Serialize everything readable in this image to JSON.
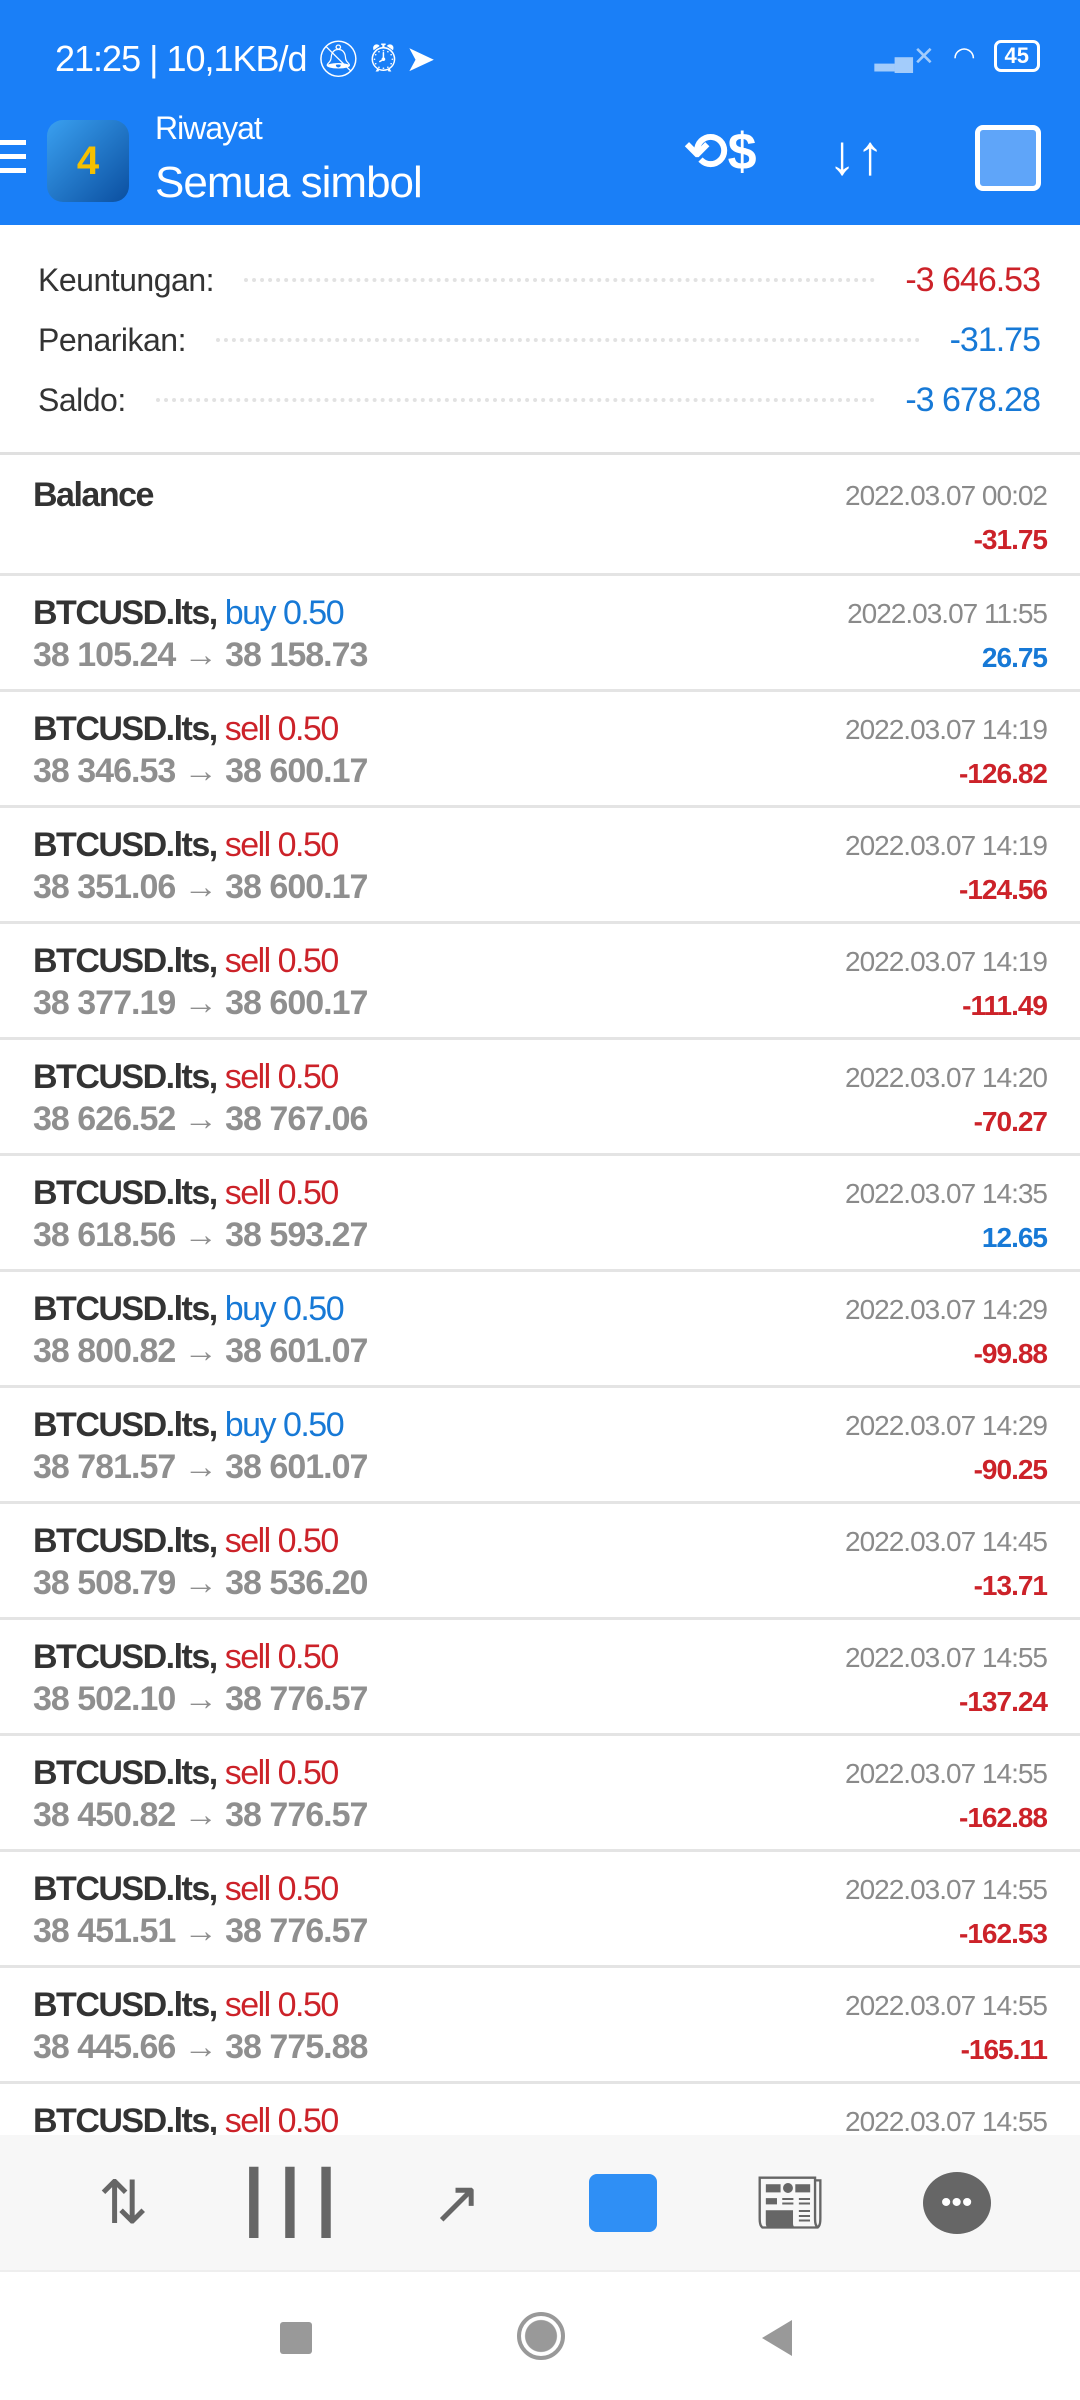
{
  "status_bar": {
    "time": "21:25",
    "speed": "10,1KB/d",
    "battery": "45"
  },
  "header": {
    "subtitle": "Riwayat",
    "title": "Semua simbol",
    "icons": [
      "currency-exchange-icon",
      "sort-icon",
      "calendar-icon"
    ]
  },
  "summary": [
    {
      "label": "Keuntungan:",
      "value": "-3 646.53",
      "color": "#cc2229"
    },
    {
      "label": "Penarikan:",
      "value": "-31.75",
      "color": "#1779d6"
    },
    {
      "label": "Saldo:",
      "value": "-3 678.28",
      "color": "#1779d6"
    }
  ],
  "balance": {
    "label": "Balance",
    "time": "2022.03.07 00:02",
    "amount": "-31.75"
  },
  "trades": [
    {
      "symbol": "BTCUSD.lts,",
      "side": "buy 0.50",
      "prices": "38 105.24 → 38 158.73",
      "time": "2022.03.07 11:55",
      "profit": "26.75"
    },
    {
      "symbol": "BTCUSD.lts,",
      "side": "sell 0.50",
      "prices": "38 346.53 → 38 600.17",
      "time": "2022.03.07 14:19",
      "profit": "-126.82"
    },
    {
      "symbol": "BTCUSD.lts,",
      "side": "sell 0.50",
      "prices": "38 351.06 → 38 600.17",
      "time": "2022.03.07 14:19",
      "profit": "-124.56"
    },
    {
      "symbol": "BTCUSD.lts,",
      "side": "sell 0.50",
      "prices": "38 377.19 → 38 600.17",
      "time": "2022.03.07 14:19",
      "profit": "-111.49"
    },
    {
      "symbol": "BTCUSD.lts,",
      "side": "sell 0.50",
      "prices": "38 626.52 → 38 767.06",
      "time": "2022.03.07 14:20",
      "profit": "-70.27"
    },
    {
      "symbol": "BTCUSD.lts,",
      "side": "sell 0.50",
      "prices": "38 618.56 → 38 593.27",
      "time": "2022.03.07 14:35",
      "profit": "12.65"
    },
    {
      "symbol": "BTCUSD.lts,",
      "side": "buy 0.50",
      "prices": "38 800.82 → 38 601.07",
      "time": "2022.03.07 14:29",
      "profit": "-99.88"
    },
    {
      "symbol": "BTCUSD.lts,",
      "side": "buy 0.50",
      "prices": "38 781.57 → 38 601.07",
      "time": "2022.03.07 14:29",
      "profit": "-90.25"
    },
    {
      "symbol": "BTCUSD.lts,",
      "side": "sell 0.50",
      "prices": "38 508.79 → 38 536.20",
      "time": "2022.03.07 14:45",
      "profit": "-13.71"
    },
    {
      "symbol": "BTCUSD.lts,",
      "side": "sell 0.50",
      "prices": "38 502.10 → 38 776.57",
      "time": "2022.03.07 14:55",
      "profit": "-137.24"
    },
    {
      "symbol": "BTCUSD.lts,",
      "side": "sell 0.50",
      "prices": "38 450.82 → 38 776.57",
      "time": "2022.03.07 14:55",
      "profit": "-162.88"
    },
    {
      "symbol": "BTCUSD.lts,",
      "side": "sell 0.50",
      "prices": "38 451.51 → 38 776.57",
      "time": "2022.03.07 14:55",
      "profit": "-162.53"
    },
    {
      "symbol": "BTCUSD.lts,",
      "side": "sell 0.50",
      "prices": "38 445.66 → 38 775.88",
      "time": "2022.03.07 14:55",
      "profit": "-165.11"
    },
    {
      "symbol": "BTCUSD.lts,",
      "side": "sell 0.50",
      "prices": "",
      "time": "2022.03.07 14:55",
      "profit": ""
    }
  ],
  "bottom_nav": [
    {
      "icon": "quotes-icon",
      "active": false
    },
    {
      "icon": "chart-icon",
      "active": false
    },
    {
      "icon": "trade-icon",
      "active": false
    },
    {
      "icon": "history-icon",
      "active": true
    },
    {
      "icon": "news-icon",
      "active": false
    },
    {
      "icon": "chat-icon",
      "active": false
    }
  ],
  "colors": {
    "accent": "#1a7ff7",
    "loss": "#cc2229",
    "profit": "#1779d6"
  }
}
